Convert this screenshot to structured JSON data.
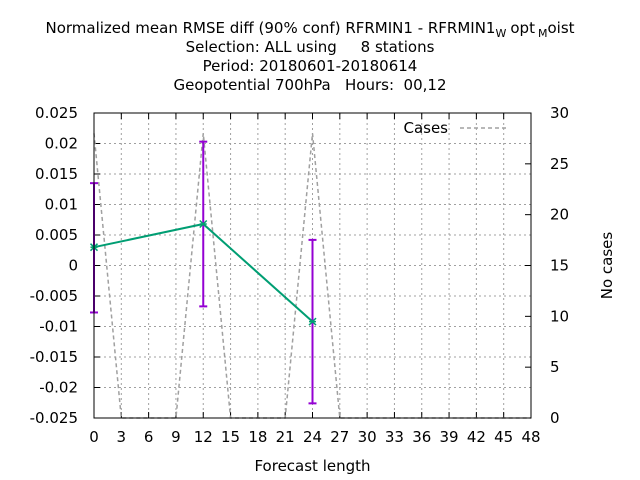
{
  "title": {
    "line1_pre": "Normalized mean RMSE diff (90% conf) RFRMIN1 - RFRMIN1",
    "line1_sub1": "W",
    "line1_mid": "opt",
    "line1_sub2": "M",
    "line1_post": "oist",
    "line2": "Selection: ALL using     8 stations",
    "line3": "Period: 20180601-20180614",
    "line4": "Geopotential 700hPa   Hours:  00,12"
  },
  "chart_data": {
    "type": "line",
    "xlabel": "Forecast length",
    "ylabel": "",
    "y2label": "No cases",
    "xlim": [
      0,
      48
    ],
    "ylim": [
      -0.025,
      0.025
    ],
    "y2lim": [
      0,
      30
    ],
    "grid": true,
    "legend_position": "top-right",
    "x_ticks": [
      "0",
      "3",
      "6",
      "9",
      "12",
      "15",
      "18",
      "21",
      "24",
      "27",
      "30",
      "33",
      "36",
      "39",
      "42",
      "45",
      "48"
    ],
    "y_ticks": [
      "0.025",
      "0.02",
      "0.015",
      "0.01",
      "0.005",
      "0",
      "-0.005",
      "-0.01",
      "-0.015",
      "-0.02",
      "-0.025"
    ],
    "y2_ticks": [
      "30",
      "25",
      "20",
      "15",
      "10",
      "5",
      "0"
    ],
    "series": [
      {
        "name": "",
        "axis": "y",
        "color": "#009e73",
        "x": [
          0,
          12,
          24
        ],
        "y": [
          0.003,
          0.0068,
          -0.0092
        ],
        "error_low": [
          -0.0077,
          -0.0067,
          -0.0226
        ],
        "error_high": [
          0.0135,
          0.0203,
          0.0042
        ],
        "error_color": "#9400d3"
      },
      {
        "name": "Cases",
        "axis": "y2",
        "color": "#a0a0a0",
        "dash": true,
        "x": [
          0,
          3,
          9,
          12,
          15,
          21,
          24,
          27,
          48
        ],
        "y": [
          28,
          0,
          0,
          28,
          0,
          0,
          28,
          0,
          0
        ]
      }
    ]
  }
}
